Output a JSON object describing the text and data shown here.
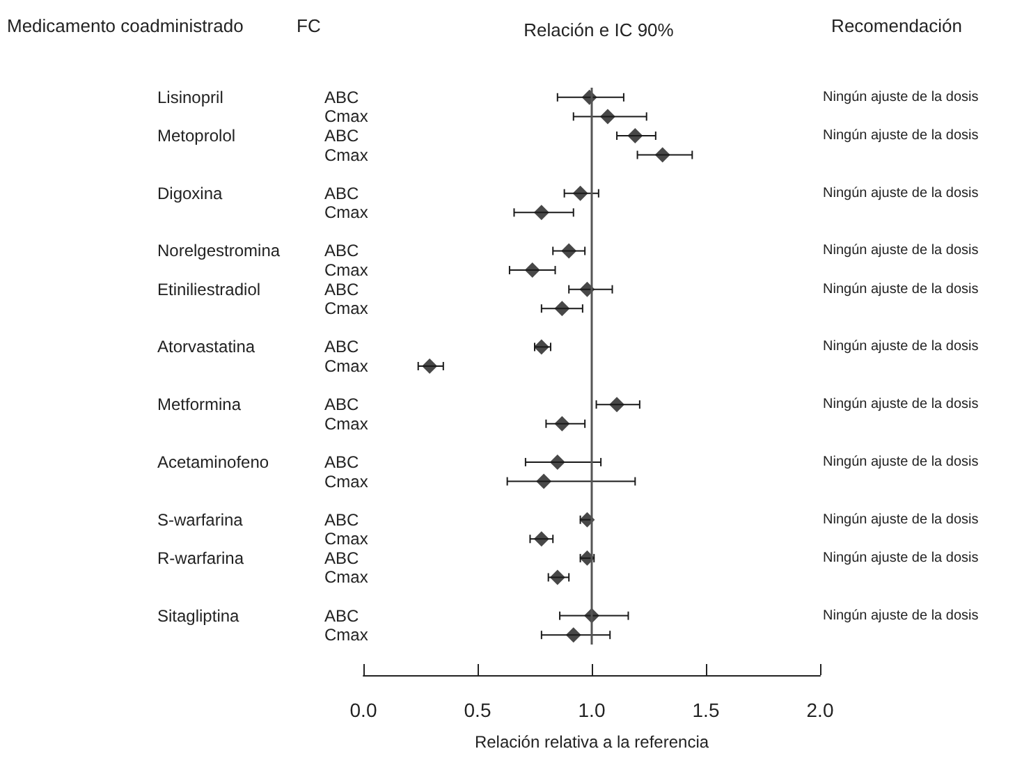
{
  "chart_data": {
    "type": "scatter",
    "orientation": "horizontal",
    "title": "Relación e IC 90%",
    "xlabel": "Relación relativa a la referencia",
    "categories": [
      "ABC",
      "Cmax",
      "ABC",
      "Cmax",
      null,
      "ABC",
      "Cmax",
      null,
      "ABC",
      "Cmax",
      "ABC",
      "Cmax",
      null,
      "ABC",
      "Cmax",
      null,
      "ABC",
      "Cmax",
      null,
      "ABC",
      "Cmax",
      null,
      "ABC",
      "Cmax",
      "ABC",
      "Cmax",
      null,
      "ABC",
      "Cmax"
    ],
    "y2_categories": [
      "Lisinopril",
      null,
      "Metoprolol",
      null,
      null,
      "Digoxina",
      null,
      null,
      "Norelgestromina",
      null,
      "Etiniliestradiol",
      null,
      null,
      "Atorvastatina",
      null,
      null,
      "Metformina",
      null,
      null,
      "Acetaminofeno",
      null,
      null,
      "S-warfarina",
      null,
      "R-warfarina",
      null,
      null,
      "Sitagliptina",
      null
    ],
    "series": [
      {
        "color": "#1a1a1a",
        "values": [
          0.99,
          1.07,
          1.19,
          1.31,
          null,
          0.95,
          0.78,
          null,
          0.9,
          0.74,
          0.98,
          0.87,
          null,
          0.78,
          0.29,
          null,
          1.11,
          0.87,
          null,
          0.85,
          0.79,
          null,
          0.98,
          0.78,
          0.98,
          0.85,
          null,
          1.0,
          0.92
        ],
        "errors": [
          [
            0.85,
            1.14
          ],
          [
            0.92,
            1.24
          ],
          [
            1.11,
            1.28
          ],
          [
            1.2,
            1.44
          ],
          null,
          [
            0.88,
            1.03
          ],
          [
            0.66,
            0.92
          ],
          null,
          [
            0.83,
            0.97
          ],
          [
            0.64,
            0.84
          ],
          [
            0.9,
            1.09
          ],
          [
            0.78,
            0.96
          ],
          null,
          [
            0.75,
            0.82
          ],
          [
            0.24,
            0.35
          ],
          null,
          [
            1.02,
            1.21
          ],
          [
            0.8,
            0.97
          ],
          null,
          [
            0.71,
            1.04
          ],
          [
            0.63,
            1.19
          ],
          null,
          [
            0.95,
            1.0
          ],
          [
            0.73,
            0.83
          ],
          [
            0.95,
            1.01
          ],
          [
            0.81,
            0.9
          ],
          null,
          [
            0.86,
            1.16
          ],
          [
            0.78,
            1.08
          ]
        ]
      }
    ],
    "xlim": [
      0,
      2
    ],
    "xticks": [
      {
        "value": 0,
        "label": "0.0"
      },
      {
        "value": 0.5,
        "label": "0.5"
      },
      {
        "value": 1,
        "label": "1.0"
      },
      {
        "value": 1.5,
        "label": "1.5"
      },
      {
        "value": 2,
        "label": "2.0"
      }
    ],
    "ref_lines": [
      {
        "axis": "x",
        "value": 1,
        "color": "#555555"
      }
    ],
    "marker": "diamond",
    "annotations": [
      "Medicamento coadministrado",
      "FC",
      "Recomendación",
      "Ningún ajuste de la dosis",
      "Ningún ajuste de la dosis",
      "Ningún ajuste de la dosis",
      "Ningún ajuste de la dosis",
      "Ningún ajuste de la dosis",
      "Ningún ajuste de la dosis",
      "Ningún ajuste de la dosis",
      "Ningún ajuste de la dosis",
      "Ningún ajuste de la dosis",
      "Ningún ajuste de la dosis",
      "Ningún ajuste de la dosis"
    ]
  }
}
